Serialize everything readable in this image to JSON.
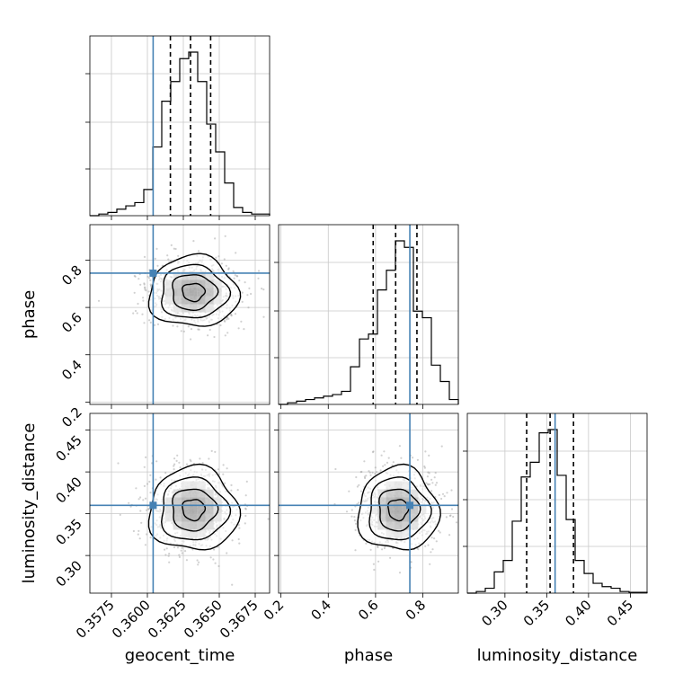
{
  "chart_data": {
    "type": "corner",
    "parameters": [
      "geocent_time",
      "phase",
      "luminosity_distance"
    ],
    "axis_labels": {
      "x": [
        "geocent_time",
        "phase",
        "luminosity_distance"
      ],
      "y": [
        "phase",
        "luminosity_distance"
      ]
    },
    "ranges": {
      "geocent_time": [
        0.356,
        0.3685
      ],
      "phase": [
        0.19,
        0.95
      ],
      "luminosity_distance": [
        0.255,
        0.47
      ]
    },
    "ticks": {
      "geocent_time": [
        "0.3575",
        "0.3600",
        "0.3625",
        "0.3650",
        "0.3675"
      ],
      "phase": [
        "0.2",
        "0.4",
        "0.6",
        "0.8"
      ],
      "luminosity_distance": [
        "0.30",
        "0.35",
        "0.40",
        "0.45"
      ]
    },
    "truths": {
      "geocent_time": 0.3604,
      "phase": 0.745,
      "luminosity_distance": 0.36
    },
    "quantiles": {
      "geocent_time": [
        0.3616,
        0.363,
        0.3644
      ],
      "phase": [
        0.59,
        0.685,
        0.775
      ],
      "luminosity_distance": [
        0.326,
        0.354,
        0.382
      ]
    },
    "histograms": {
      "geocent_time": [
        0,
        0.01,
        0.02,
        0.04,
        0.06,
        0.08,
        0.16,
        0.42,
        0.7,
        0.82,
        0.96,
        1.0,
        0.82,
        0.56,
        0.39,
        0.2,
        0.05,
        0.02,
        0.01,
        0.01
      ],
      "phase": [
        0,
        0.01,
        0.02,
        0.03,
        0.04,
        0.05,
        0.06,
        0.08,
        0.23,
        0.4,
        0.43,
        0.7,
        0.82,
        1.0,
        0.96,
        0.57,
        0.53,
        0.24,
        0.14,
        0.03
      ],
      "luminosity_distance": [
        0,
        0.01,
        0.03,
        0.13,
        0.2,
        0.44,
        0.71,
        0.8,
        0.98,
        1.0,
        0.72,
        0.45,
        0.2,
        0.12,
        0.06,
        0.04,
        0.03,
        0.01,
        0.005,
        0.005
      ]
    },
    "contours": {
      "phase_vs_geocent_time": {
        "center": [
          0.3632,
          0.665
        ],
        "sigma": [
          0.00155,
          0.075
        ]
      },
      "luminosity_distance_vs_geocent_time": {
        "center": [
          0.3632,
          0.355
        ],
        "sigma": [
          0.00155,
          0.025
        ]
      },
      "luminosity_distance_vs_phase": {
        "center": [
          0.695,
          0.355
        ],
        "sigma": [
          0.085,
          0.025
        ]
      }
    },
    "contour_levels_sigma": [
      0.5,
      1.0,
      1.5,
      2.0
    ]
  }
}
